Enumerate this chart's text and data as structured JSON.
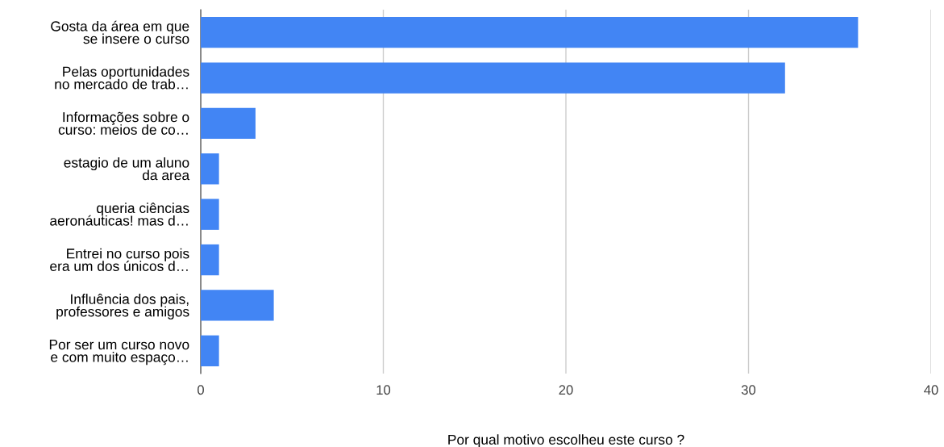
{
  "chart_data": {
    "type": "bar",
    "orientation": "horizontal",
    "categories": [
      "Gosta da área em que\nse insere o curso",
      "Pelas oportunidades\nno mercado de trab…",
      "Informações sobre o\ncurso: meios de co…",
      "estagio de um aluno\nda area",
      "queria ciências\naeronáuticas! mas d…",
      "Entrei no curso pois\nera um dos únicos d…",
      "Influência dos pais,\nprofessores e amigos",
      "Por ser um curso novo\ne com muito espaço…"
    ],
    "values": [
      36,
      32,
      3,
      1,
      1,
      1,
      4,
      1
    ],
    "color": "#4285f4",
    "xlim": [
      0,
      40
    ],
    "xticks": [
      0,
      10,
      20,
      30,
      40
    ],
    "xlabel": "Por qual motivo escolheu este curso ?",
    "grid": "x"
  }
}
